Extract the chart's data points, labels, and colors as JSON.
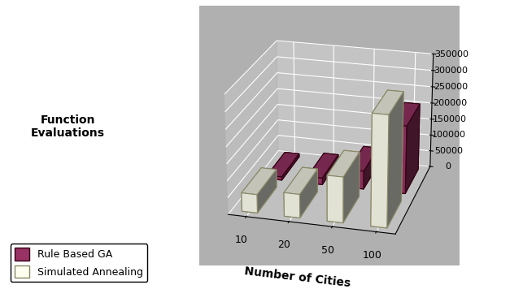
{
  "categories": [
    "10",
    "20",
    "50",
    "100"
  ],
  "rule_based_ga": [
    10000,
    20000,
    55000,
    205000
  ],
  "simulated_annealing": [
    55000,
    70000,
    135000,
    325000
  ],
  "bar_color_ga": "#993366",
  "bar_color_sa": "#fffff0",
  "bar_edge_color_ga": "#330011",
  "bar_edge_color_sa": "#888866",
  "ylabel": "Function\nEvaluations",
  "xlabel": "Number of Cities",
  "zlim": [
    0,
    350000
  ],
  "zticks": [
    0,
    50000,
    100000,
    150000,
    200000,
    250000,
    300000,
    350000
  ],
  "legend_ga": "Rule Based GA",
  "legend_sa": "Simulated Annealing",
  "elev": 22,
  "azim": -75
}
